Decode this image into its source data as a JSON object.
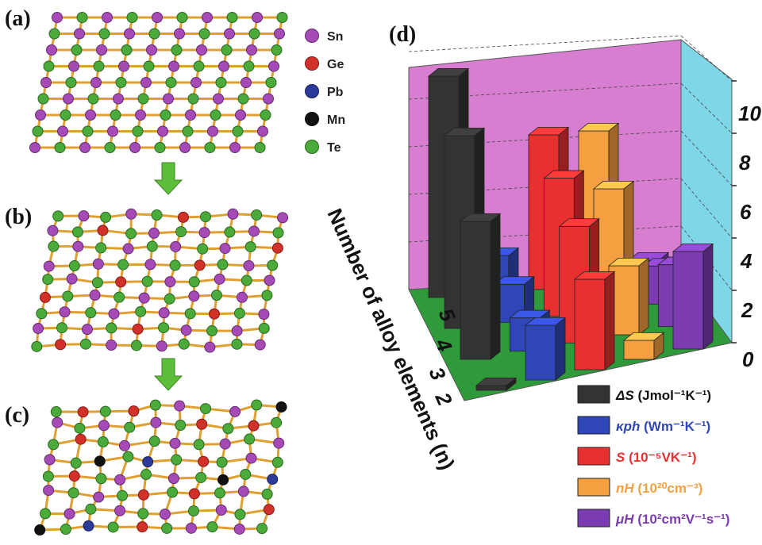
{
  "panels": {
    "a": "(a)",
    "b": "(b)",
    "c": "(c)",
    "d": "(d)"
  },
  "atom_legend": [
    {
      "label": "Sn",
      "color": "#a64ab8"
    },
    {
      "label": "Ge",
      "color": "#d2312a"
    },
    {
      "label": "Pb",
      "color": "#2c3a9a"
    },
    {
      "label": "Mn",
      "color": "#111111"
    },
    {
      "label": "Te",
      "color": "#4aab3a"
    }
  ],
  "bond_color": "#e0a030",
  "arrow_color": "#5cbf3a",
  "chart_data": {
    "type": "bar",
    "subtype": "3d-bar",
    "ylabel": "Number of alloy elements (n)",
    "y_categories": [
      "2",
      "3",
      "4",
      "5"
    ],
    "z_ticks": [
      "0",
      "2",
      "4",
      "6",
      "8",
      "10"
    ],
    "zlim": [
      0,
      10
    ],
    "series": [
      {
        "legend_main": "ΔS",
        "legend_unit": "(Jmol⁻¹K⁻¹)",
        "color": "#333333",
        "values": [
          0.2,
          5.8,
          8.1,
          9.3
        ]
      },
      {
        "legend_main": "κph",
        "legend_unit": "(Wm⁻¹K⁻¹)",
        "color": "#2f46b8",
        "values": [
          2.3,
          1.4,
          1.6,
          1.6
        ]
      },
      {
        "legend_main": "S",
        "legend_unit": "(10⁻⁵VK⁻¹)",
        "color": "#e83030",
        "values": [
          3.8,
          4.9,
          5.8,
          6.5
        ]
      },
      {
        "legend_main": "nH",
        "legend_unit": "(10²⁰cm⁻³)",
        "color": "#f5a040",
        "values": [
          0.8,
          2.9,
          5.1,
          6.5
        ]
      },
      {
        "legend_main": "μH",
        "legend_unit": "(10²cm²V⁻¹s⁻¹)",
        "color": "#7a3cb0",
        "values": [
          4.1,
          2.6,
          1.6,
          0.9
        ]
      }
    ],
    "back_wall_color": "#d77ed0",
    "side_wall_color": "#7fd6e6",
    "floor_color": "#2f9a3a"
  }
}
